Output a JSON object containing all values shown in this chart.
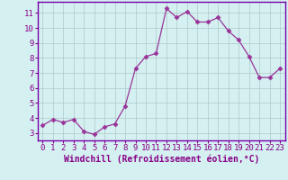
{
  "x": [
    0,
    1,
    2,
    3,
    4,
    5,
    6,
    7,
    8,
    9,
    10,
    11,
    12,
    13,
    14,
    15,
    16,
    17,
    18,
    19,
    20,
    21,
    22,
    23
  ],
  "y": [
    3.5,
    3.9,
    3.7,
    3.9,
    3.1,
    2.9,
    3.4,
    3.6,
    4.8,
    7.3,
    8.1,
    8.3,
    11.3,
    10.7,
    11.1,
    10.4,
    10.4,
    10.7,
    9.8,
    9.2,
    8.1,
    6.7,
    6.7,
    7.3
  ],
  "line_color": "#993399",
  "marker": "D",
  "marker_size": 2.5,
  "bg_color": "#d4f0f0",
  "grid_color": "#b0c8c8",
  "xlabel": "Windchill (Refroidissement éolien,°C)",
  "ylabel": "",
  "xlim": [
    -0.5,
    23.5
  ],
  "ylim": [
    2.5,
    11.75
  ],
  "yticks": [
    3,
    4,
    5,
    6,
    7,
    8,
    9,
    10,
    11
  ],
  "xticks": [
    0,
    1,
    2,
    3,
    4,
    5,
    6,
    7,
    8,
    9,
    10,
    11,
    12,
    13,
    14,
    15,
    16,
    17,
    18,
    19,
    20,
    21,
    22,
    23
  ],
  "tick_color": "#880088",
  "xlabel_color": "#880088",
  "axis_label_fontsize": 7,
  "tick_fontsize": 6.5,
  "border_color": "#7700aa"
}
